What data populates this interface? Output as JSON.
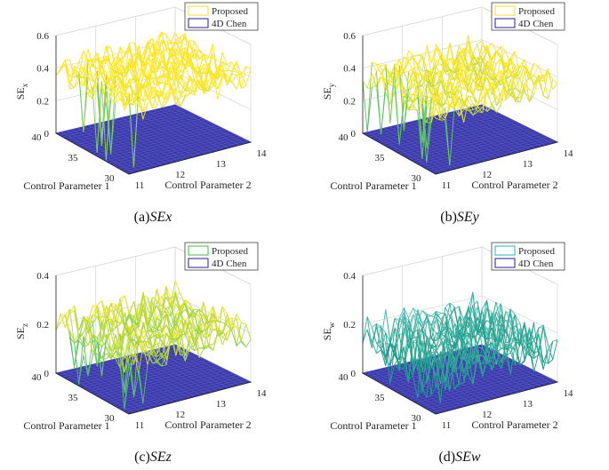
{
  "figure": {
    "colors": {
      "surface_fill": "#3b3aa8",
      "surface_grid": "#5a58c8",
      "axis": "#262626",
      "grid": "#d9d9d9",
      "legend_border": "#262626"
    }
  },
  "chart_data": [
    {
      "type": "surface3d",
      "panel": "a",
      "caption_prefix": "(a)",
      "caption_italic": "SEx",
      "zlabel_main": "SE",
      "zlabel_sub": "x",
      "xlabel": "Control Parameter 1",
      "ylabel": "Control Parameter 2",
      "x_ticks": [
        "40",
        "35",
        "30"
      ],
      "y_ticks": [
        "11",
        "12",
        "13",
        "14"
      ],
      "z_ticks": [
        "0",
        "0.2",
        "0.4",
        "0.6"
      ],
      "zlim": [
        0,
        0.6
      ],
      "series": [
        {
          "name": "Proposed",
          "mean": 0.4,
          "amplitude": 0.09,
          "colormap": [
            "#21918c",
            "#5ec962",
            "#fde725"
          ]
        },
        {
          "name": "4D Chen",
          "value": 0,
          "color": "#3b3aa8"
        }
      ],
      "legend": [
        "Proposed",
        "4D Chen"
      ],
      "legend_swatch": [
        "#f2e64a",
        "#4a3fb0"
      ]
    },
    {
      "type": "surface3d",
      "panel": "b",
      "caption_prefix": "(b)",
      "caption_italic": "SEy",
      "zlabel_main": "SE",
      "zlabel_sub": "y",
      "xlabel": "Control Parameter 1",
      "ylabel": "Control Parameter 2",
      "x_ticks": [
        "40",
        "35",
        "30"
      ],
      "y_ticks": [
        "11",
        "12",
        "13",
        "14"
      ],
      "z_ticks": [
        "0",
        "0.2",
        "0.4",
        "0.6"
      ],
      "zlim": [
        0,
        0.6
      ],
      "series": [
        {
          "name": "Proposed",
          "mean": 0.36,
          "amplitude": 0.09,
          "colormap": [
            "#21918c",
            "#5ec962",
            "#fde725"
          ]
        },
        {
          "name": "4D Chen",
          "value": 0,
          "color": "#3b3aa8"
        }
      ],
      "legend": [
        "Proposed",
        "4D Chen"
      ],
      "legend_swatch": [
        "#f2e64a",
        "#4a3fb0"
      ]
    },
    {
      "type": "surface3d",
      "panel": "c",
      "caption_prefix": "(c)",
      "caption_italic": "SEz",
      "zlabel_main": "SE",
      "zlabel_sub": "z",
      "xlabel": "Control Parameter 1",
      "ylabel": "Control Parameter 2",
      "x_ticks": [
        "40",
        "35",
        "30"
      ],
      "y_ticks": [
        "11",
        "12",
        "13",
        "14"
      ],
      "z_ticks": [
        "0",
        "0.2",
        "0.4"
      ],
      "zlim": [
        0,
        0.4
      ],
      "series": [
        {
          "name": "Proposed",
          "mean": 0.2,
          "amplitude": 0.07,
          "colormap": [
            "#21918c",
            "#5ec962",
            "#fde725"
          ]
        },
        {
          "name": "4D Chen",
          "value": 0,
          "color": "#3b3aa8"
        }
      ],
      "legend": [
        "Proposed",
        "4D Chen"
      ],
      "legend_swatch": [
        "#5ec962",
        "#4a3fb0"
      ]
    },
    {
      "type": "surface3d",
      "panel": "d",
      "caption_prefix": "(d)",
      "caption_italic": "SEw",
      "zlabel_main": "SE",
      "zlabel_sub": "w",
      "xlabel": "Control Parameter 1",
      "ylabel": "Control Parameter 2",
      "x_ticks": [
        "40",
        "35",
        "30"
      ],
      "y_ticks": [
        "11",
        "12",
        "13",
        "14"
      ],
      "z_ticks": [
        "0",
        "0.2",
        "0.4"
      ],
      "zlim": [
        0,
        0.4
      ],
      "series": [
        {
          "name": "Proposed",
          "mean": 0.15,
          "amplitude": 0.09,
          "colormap": [
            "#2c7fb8",
            "#1fa187",
            "#7fd3d8"
          ]
        },
        {
          "name": "4D Chen",
          "value": 0,
          "color": "#3b3aa8"
        }
      ],
      "legend": [
        "Proposed",
        "4D Chen"
      ],
      "legend_swatch": [
        "#49c1c8",
        "#4a3fb0"
      ]
    }
  ]
}
